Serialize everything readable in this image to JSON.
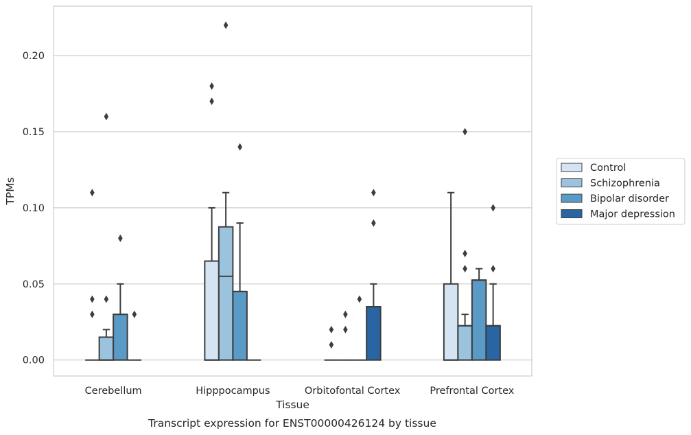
{
  "caption": "Transcript expression for ENST00000426124 by tissue",
  "chart_data": {
    "type": "box",
    "xlabel": "Tissue",
    "ylabel": "TPMs",
    "ylim": [
      -0.0105,
      0.2325
    ],
    "yticks": [
      0.0,
      0.05,
      0.1,
      0.15,
      0.2
    ],
    "ytick_labels": [
      "0.00",
      "0.05",
      "0.10",
      "0.15",
      "0.20"
    ],
    "grid": true,
    "legend_position": "right",
    "categories": [
      "Cerebellum",
      "Hipppocampus",
      "Orbitofontal Cortex",
      "Prefrontal Cortex"
    ],
    "series": [
      {
        "name": "Control",
        "color": "#d4e4f2",
        "boxes": [
          {
            "q1": 0,
            "median": 0,
            "q3": 0,
            "whislo": 0,
            "whishi": 0,
            "fliers": [
              0.03,
              0.04,
              0.11
            ]
          },
          {
            "q1": 0,
            "median": 0,
            "q3": 0.065,
            "whislo": 0,
            "whishi": 0.1,
            "fliers": [
              0.17,
              0.18
            ]
          },
          {
            "q1": 0,
            "median": 0,
            "q3": 0,
            "whislo": 0,
            "whishi": 0,
            "fliers": [
              0.01,
              0.02
            ]
          },
          {
            "q1": 0,
            "median": 0,
            "q3": 0.05,
            "whislo": 0,
            "whishi": 0.11,
            "fliers": []
          }
        ]
      },
      {
        "name": "Schizophrenia",
        "color": "#9bc3dd",
        "boxes": [
          {
            "q1": 0,
            "median": 0,
            "q3": 0.015,
            "whislo": 0,
            "whishi": 0.02,
            "fliers": [
              0.04,
              0.16
            ]
          },
          {
            "q1": 0,
            "median": 0.055,
            "q3": 0.0875,
            "whislo": 0,
            "whishi": 0.11,
            "fliers": [
              0.22
            ]
          },
          {
            "q1": 0,
            "median": 0,
            "q3": 0,
            "whislo": 0,
            "whishi": 0,
            "fliers": [
              0.02,
              0.03
            ]
          },
          {
            "q1": 0,
            "median": 0.0225,
            "q3": 0.0225,
            "whislo": 0,
            "whishi": 0.03,
            "fliers": [
              0.06,
              0.07,
              0.15
            ]
          }
        ]
      },
      {
        "name": "Bipolar disorder",
        "color": "#5a9ac6",
        "boxes": [
          {
            "q1": 0,
            "median": 0.03,
            "q3": 0.03,
            "whislo": 0,
            "whishi": 0.05,
            "fliers": [
              0.08
            ]
          },
          {
            "q1": 0,
            "median": 0.045,
            "q3": 0.045,
            "whislo": 0,
            "whishi": 0.09,
            "fliers": [
              0.14
            ]
          },
          {
            "q1": 0,
            "median": 0,
            "q3": 0,
            "whislo": 0,
            "whishi": 0,
            "fliers": [
              0.04
            ]
          },
          {
            "q1": 0,
            "median": 0.0525,
            "q3": 0.0525,
            "whislo": 0,
            "whishi": 0.06,
            "fliers": []
          }
        ]
      },
      {
        "name": "Major depression",
        "color": "#2865a2",
        "boxes": [
          {
            "q1": 0,
            "median": 0,
            "q3": 0,
            "whislo": 0,
            "whishi": 0,
            "fliers": [
              0.03
            ]
          },
          {
            "q1": 0,
            "median": 0,
            "q3": 0,
            "whislo": 0,
            "whishi": 0,
            "fliers": []
          },
          {
            "q1": 0,
            "median": 0.035,
            "q3": 0.035,
            "whislo": 0,
            "whishi": 0.05,
            "fliers": [
              0.09,
              0.11
            ]
          },
          {
            "q1": 0,
            "median": 0.0225,
            "q3": 0.0225,
            "whislo": 0,
            "whishi": 0.05,
            "fliers": [
              0.06,
              0.1
            ]
          }
        ]
      }
    ]
  }
}
